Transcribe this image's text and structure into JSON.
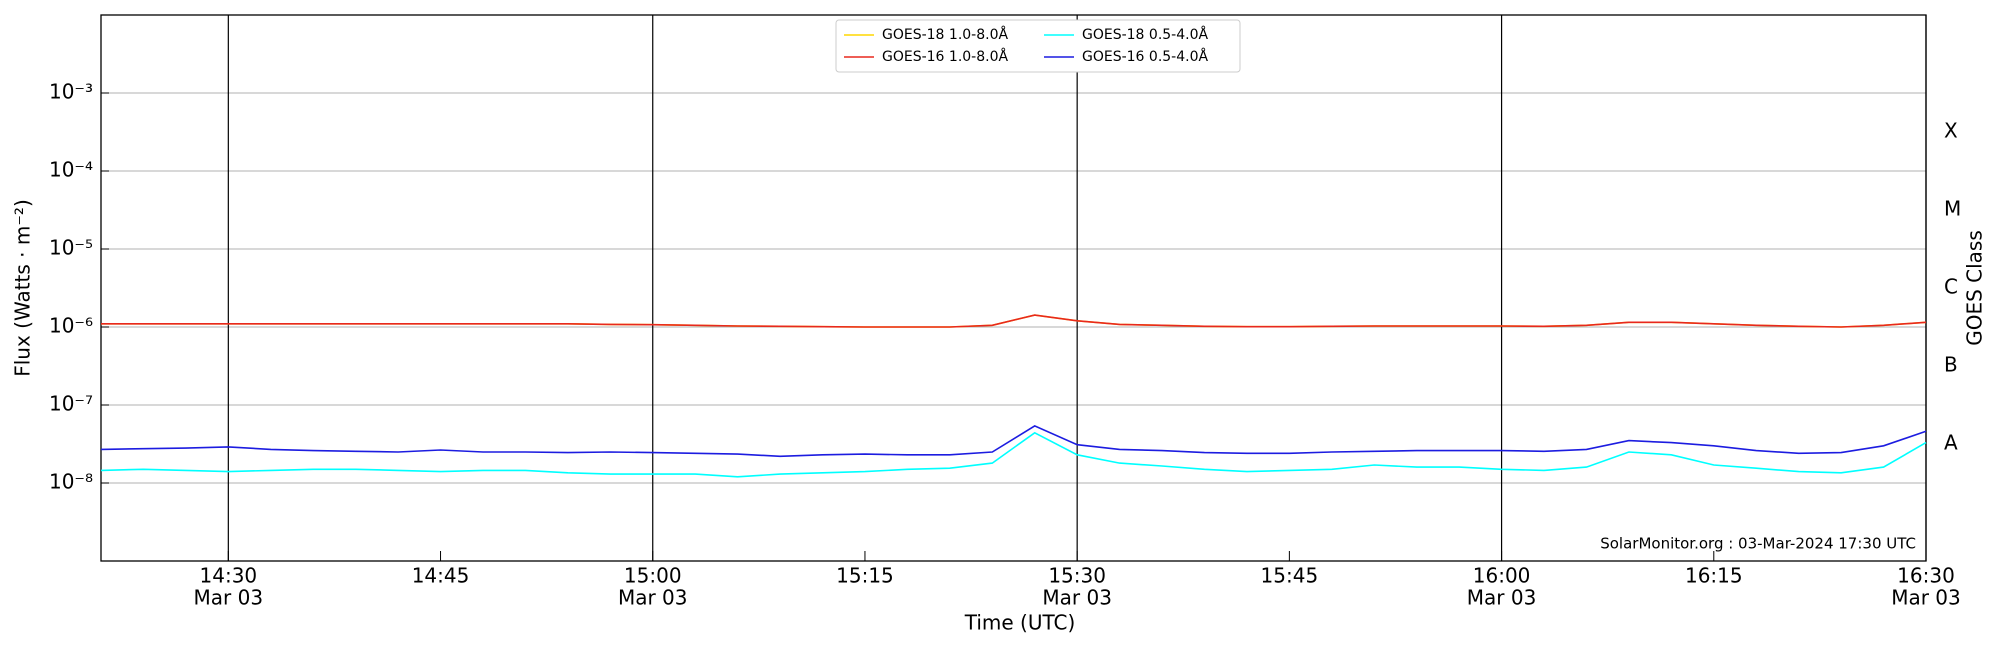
{
  "chart_data": {
    "type": "line",
    "log_scale_y": true,
    "grid": true,
    "ylabel": "Flux (Watts · m⁻²)",
    "xlabel": "Time (UTC)",
    "y2label": "GOES Class",
    "annotation": "SolarMonitor.org : 03-Mar-2024 17:30 UTC",
    "legend": "upper center",
    "x": [
      "14:21",
      "14:24",
      "14:27",
      "14:30",
      "14:33",
      "14:36",
      "14:39",
      "14:42",
      "14:45",
      "14:48",
      "14:51",
      "14:54",
      "14:57",
      "15:00",
      "15:03",
      "15:06",
      "15:09",
      "15:12",
      "15:15",
      "15:18",
      "15:21",
      "15:24",
      "15:27",
      "15:30",
      "15:33",
      "15:36",
      "15:39",
      "15:42",
      "15:45",
      "15:48",
      "15:51",
      "15:54",
      "15:57",
      "16:00",
      "16:03",
      "16:06",
      "16:09",
      "16:12",
      "16:15",
      "16:18",
      "16:21",
      "16:24",
      "16:27",
      "16:30"
    ],
    "xlim": [
      "14:21",
      "16:30"
    ],
    "xticks": [
      "14:30",
      "14:45",
      "15:00",
      "15:15",
      "15:30",
      "15:45",
      "16:00",
      "16:15",
      "16:30"
    ],
    "xtick_dates": [
      "Mar 03",
      null,
      "Mar 03",
      null,
      "Mar 03",
      null,
      "Mar 03",
      null,
      "Mar 03"
    ],
    "ylim": [
      1e-09,
      0.01
    ],
    "yticks": [
      {
        "value": 1e-08,
        "label": "10⁻⁸"
      },
      {
        "value": 1e-07,
        "label": "10⁻⁷"
      },
      {
        "value": 1e-06,
        "label": "10⁻⁶"
      },
      {
        "value": 1e-05,
        "label": "10⁻⁵"
      },
      {
        "value": 0.0001,
        "label": "10⁻⁴"
      },
      {
        "value": 0.001,
        "label": "10⁻³"
      }
    ],
    "y2lim": [
      1e-09,
      0.01
    ],
    "y2ticks": [
      {
        "value": 3.16e-08,
        "label": "A"
      },
      {
        "value": 3.16e-07,
        "label": "B"
      },
      {
        "value": 3.16e-06,
        "label": "C"
      },
      {
        "value": 3.16e-05,
        "label": "M"
      },
      {
        "value": 0.000316,
        "label": "X"
      }
    ],
    "series": [
      {
        "name": "GOES-18 1.0-8.0Å",
        "color": "#ffd700",
        "values": [
          1.1e-06,
          1.1e-06,
          1.1e-06,
          1.1e-06,
          1.1e-06,
          1.1e-06,
          1.1e-06,
          1.1e-06,
          1.1e-06,
          1.1e-06,
          1.1e-06,
          1.1e-06,
          1.08e-06,
          1.07e-06,
          1.05e-06,
          1.03e-06,
          1.02e-06,
          1.01e-06,
          1e-06,
          1e-06,
          1e-06,
          1.05e-06,
          1.42e-06,
          1.2e-06,
          1.08e-06,
          1.05e-06,
          1.02e-06,
          1.01e-06,
          1.01e-06,
          1.02e-06,
          1.03e-06,
          1.03e-06,
          1.03e-06,
          1.03e-06,
          1.02e-06,
          1.05e-06,
          1.15e-06,
          1.15e-06,
          1.1e-06,
          1.05e-06,
          1.02e-06,
          1e-06,
          1.05e-06,
          1.15e-06
        ]
      },
      {
        "name": "GOES-16 1.0-8.0Å",
        "color": "#e8281e",
        "values": [
          1.1e-06,
          1.1e-06,
          1.1e-06,
          1.1e-06,
          1.1e-06,
          1.1e-06,
          1.1e-06,
          1.1e-06,
          1.1e-06,
          1.1e-06,
          1.1e-06,
          1.1e-06,
          1.08e-06,
          1.07e-06,
          1.05e-06,
          1.03e-06,
          1.02e-06,
          1.01e-06,
          1e-06,
          1e-06,
          1e-06,
          1.05e-06,
          1.42e-06,
          1.2e-06,
          1.08e-06,
          1.05e-06,
          1.02e-06,
          1.01e-06,
          1.01e-06,
          1.02e-06,
          1.03e-06,
          1.03e-06,
          1.03e-06,
          1.03e-06,
          1.02e-06,
          1.05e-06,
          1.15e-06,
          1.15e-06,
          1.1e-06,
          1.05e-06,
          1.02e-06,
          1e-06,
          1.05e-06,
          1.15e-06
        ]
      },
      {
        "name": "GOES-18 0.5-4.0Å",
        "color": "#00ffff",
        "values": [
          1.45e-08,
          1.5e-08,
          1.45e-08,
          1.4e-08,
          1.45e-08,
          1.5e-08,
          1.5e-08,
          1.45e-08,
          1.4e-08,
          1.45e-08,
          1.45e-08,
          1.35e-08,
          1.3e-08,
          1.3e-08,
          1.3e-08,
          1.2e-08,
          1.3e-08,
          1.35e-08,
          1.4e-08,
          1.5e-08,
          1.55e-08,
          1.8e-08,
          4.4e-08,
          2.3e-08,
          1.8e-08,
          1.65e-08,
          1.5e-08,
          1.4e-08,
          1.45e-08,
          1.5e-08,
          1.7e-08,
          1.6e-08,
          1.6e-08,
          1.5e-08,
          1.45e-08,
          1.6e-08,
          2.5e-08,
          2.3e-08,
          1.7e-08,
          1.55e-08,
          1.4e-08,
          1.35e-08,
          1.6e-08,
          3.3e-08
        ]
      },
      {
        "name": "GOES-16 0.5-4.0Å",
        "color": "#1c1ce0",
        "values": [
          2.7e-08,
          2.75e-08,
          2.8e-08,
          2.9e-08,
          2.7e-08,
          2.6e-08,
          2.55e-08,
          2.5e-08,
          2.65e-08,
          2.5e-08,
          2.5e-08,
          2.45e-08,
          2.5e-08,
          2.45e-08,
          2.4e-08,
          2.35e-08,
          2.2e-08,
          2.3e-08,
          2.35e-08,
          2.3e-08,
          2.3e-08,
          2.5e-08,
          5.4e-08,
          3.1e-08,
          2.7e-08,
          2.6e-08,
          2.45e-08,
          2.4e-08,
          2.4e-08,
          2.5e-08,
          2.55e-08,
          2.6e-08,
          2.6e-08,
          2.6e-08,
          2.55e-08,
          2.7e-08,
          3.5e-08,
          3.3e-08,
          3e-08,
          2.6e-08,
          2.4e-08,
          2.45e-08,
          3e-08,
          4.6e-08
        ]
      }
    ]
  }
}
